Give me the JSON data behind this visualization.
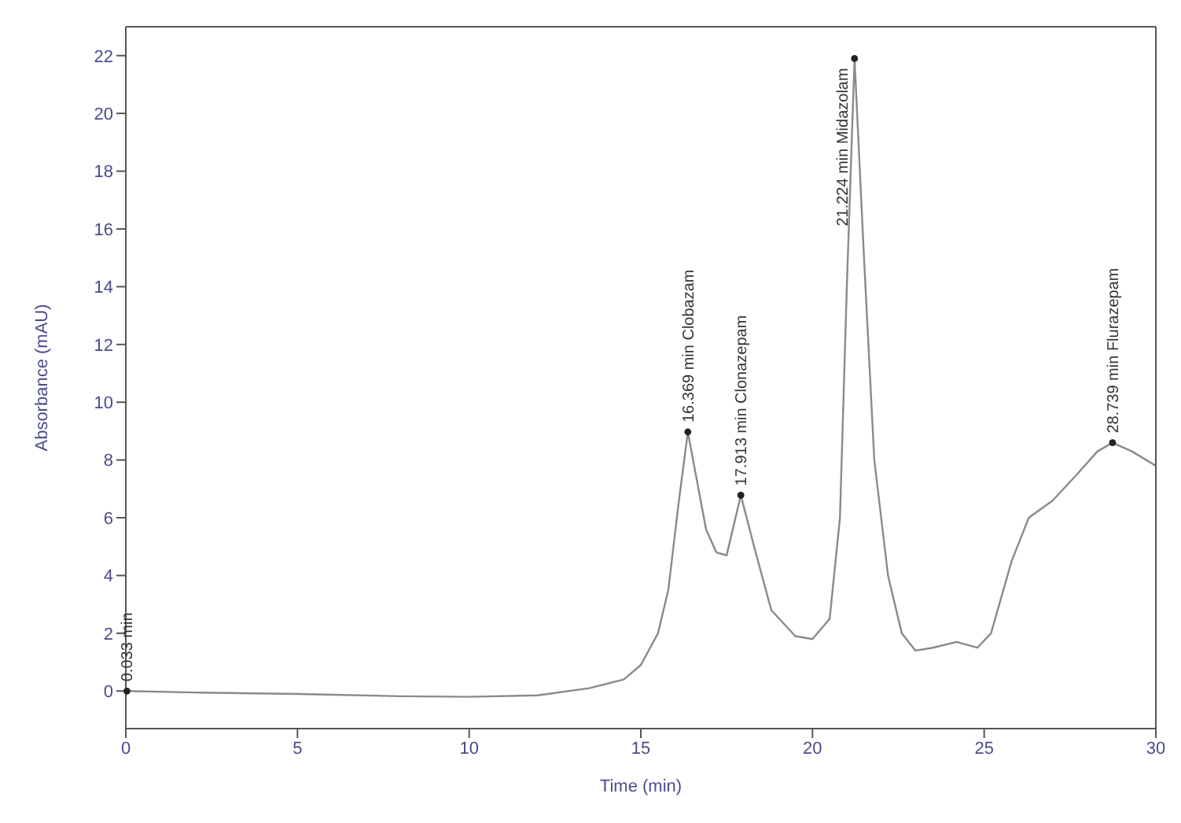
{
  "chart_data": {
    "type": "line",
    "xlabel": "Time (min)",
    "ylabel": "Absorbance (mAU)",
    "x": [
      0,
      2,
      5,
      8,
      10,
      12,
      13.5,
      14.5,
      15,
      15.5,
      15.8,
      16.1,
      16.369,
      16.6,
      16.9,
      17.2,
      17.5,
      17.913,
      18.3,
      18.8,
      19.5,
      20,
      20.5,
      20.8,
      21.0,
      21.224,
      21.5,
      21.8,
      22.2,
      22.6,
      23,
      23.5,
      24.2,
      24.8,
      25.2,
      25.8,
      26.3,
      27,
      27.7,
      28.3,
      28.739,
      29.3,
      30
    ],
    "series": [
      {
        "color": "#8a8a8a",
        "values": [
          0,
          -0.05,
          -0.1,
          -0.18,
          -0.2,
          -0.15,
          0.1,
          0.4,
          0.9,
          2,
          3.5,
          6.5,
          8.97,
          7.5,
          5.6,
          4.8,
          4.7,
          6.78,
          5,
          2.8,
          1.9,
          1.8,
          2.5,
          6,
          14,
          21.9,
          15,
          8,
          4,
          2,
          1.4,
          1.5,
          1.7,
          1.5,
          2,
          4.5,
          6,
          6.6,
          7.5,
          8.3,
          8.6,
          8.3,
          7.8
        ]
      }
    ],
    "xlim": [
      0,
      30
    ],
    "xticks": [
      0,
      5,
      10,
      15,
      20,
      25,
      30
    ],
    "ylim": [
      -1.3,
      23
    ],
    "yticks": [
      0,
      2,
      4,
      6,
      8,
      10,
      12,
      14,
      16,
      18,
      20,
      22
    ],
    "grid": false,
    "legend": false,
    "marker": "none",
    "line_style": "solid",
    "annotations": [
      {
        "text": "0.033 min",
        "x": 0.033,
        "y": 0
      },
      {
        "text": "16.369 min Clobazam",
        "x": 16.369,
        "y": 8.97
      },
      {
        "text": "17.913 min Clonazepam",
        "x": 17.913,
        "y": 6.78
      },
      {
        "text": "21.224 min Midazolam",
        "x": 21.224,
        "y": 21.9
      },
      {
        "text": "28.739 min Flurazepam",
        "x": 28.739,
        "y": 8.6
      }
    ]
  }
}
